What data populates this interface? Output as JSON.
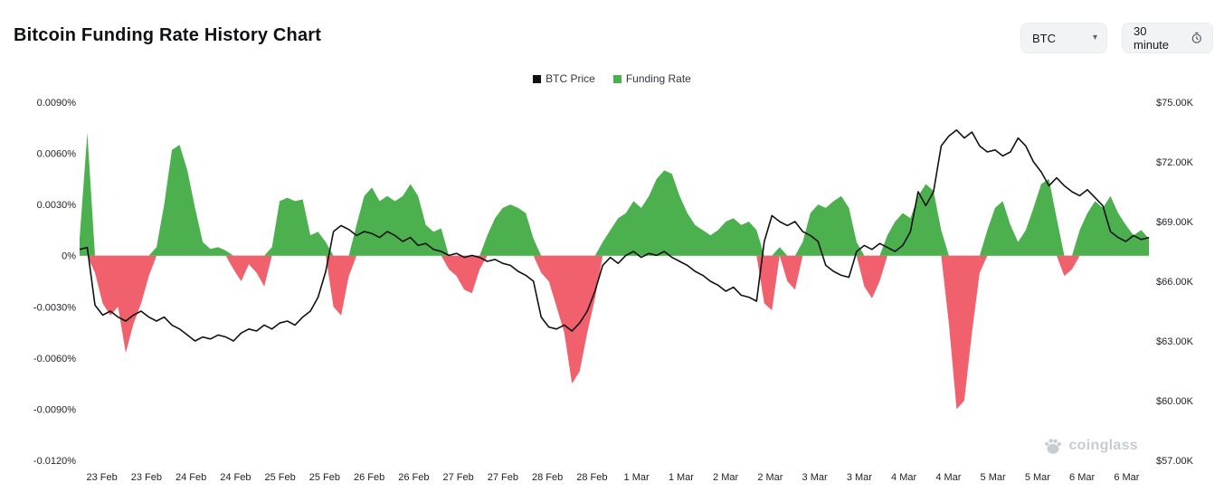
{
  "header": {
    "title": "Bitcoin Funding Rate History Chart",
    "coin_select": {
      "value": "BTC"
    },
    "interval_select": {
      "value": "30 minute"
    }
  },
  "legend": [
    {
      "label": "BTC Price",
      "color": "#111111"
    },
    {
      "label": "Funding Rate",
      "color": "#4cb04f"
    }
  ],
  "watermark": {
    "text": "coinglass"
  },
  "chart_data": {
    "type": "area+line",
    "title": "Bitcoin Funding Rate History Chart",
    "grid": false,
    "legend_position": "top-center",
    "x_labels": [
      "23 Feb",
      "23 Feb",
      "24 Feb",
      "24 Feb",
      "25 Feb",
      "25 Feb",
      "26 Feb",
      "26 Feb",
      "27 Feb",
      "27 Feb",
      "28 Feb",
      "28 Feb",
      "1 Mar",
      "1 Mar",
      "2 Mar",
      "2 Mar",
      "3 Mar",
      "3 Mar",
      "4 Mar",
      "4 Mar",
      "5 Mar",
      "5 Mar",
      "6 Mar",
      "6 Mar"
    ],
    "left_axis": {
      "label": "Funding Rate",
      "unit": "%",
      "min": -0.012,
      "max": 0.009,
      "ticks": [
        {
          "label": "0.0090%",
          "value": 0.009
        },
        {
          "label": "0.0060%",
          "value": 0.006
        },
        {
          "label": "0.0030%",
          "value": 0.003
        },
        {
          "label": "0%",
          "value": 0
        },
        {
          "label": "-0.0030%",
          "value": -0.003
        },
        {
          "label": "-0.0060%",
          "value": -0.006
        },
        {
          "label": "-0.0090%",
          "value": -0.009
        },
        {
          "label": "-0.0120%",
          "value": -0.012
        }
      ]
    },
    "right_axis": {
      "label": "BTC Price",
      "unit": "$K",
      "min": 57,
      "max": 75,
      "ticks": [
        {
          "label": "$75.00K",
          "value": 75
        },
        {
          "label": "$72.00K",
          "value": 72
        },
        {
          "label": "$69.00K",
          "value": 69
        },
        {
          "label": "$66.00K",
          "value": 66
        },
        {
          "label": "$63.00K",
          "value": 63
        },
        {
          "label": "$60.00K",
          "value": 60
        },
        {
          "label": "$57.00K",
          "value": 57
        }
      ]
    },
    "series": [
      {
        "name": "Funding Rate",
        "type": "area",
        "axis": "left",
        "unit": "%",
        "color_positive": "#4cb04f",
        "color_negative": "#f1616d",
        "values": [
          0.001,
          0.0072,
          -0.001,
          -0.0028,
          -0.0035,
          -0.003,
          -0.0057,
          -0.004,
          -0.0028,
          -0.0012,
          0.0005,
          0.003,
          0.0062,
          0.0065,
          0.005,
          0.0028,
          0.0008,
          0.0004,
          0.0005,
          0.0003,
          -0.0008,
          -0.0015,
          -0.0005,
          -0.001,
          -0.0018,
          0.0005,
          0.0032,
          0.0034,
          0.0032,
          0.0033,
          0.0012,
          0.0014,
          0.0008,
          -0.003,
          -0.0035,
          -0.0012,
          0.0018,
          0.0035,
          0.004,
          0.0032,
          0.0035,
          0.0032,
          0.0035,
          0.0042,
          0.0035,
          0.0018,
          0.0014,
          0.0016,
          -0.0008,
          -0.0012,
          -0.002,
          -0.0022,
          -0.0008,
          0.0012,
          0.0022,
          0.0028,
          0.003,
          0.0028,
          0.0025,
          0.001,
          -0.001,
          -0.0015,
          -0.003,
          -0.0045,
          -0.0075,
          -0.0068,
          -0.0045,
          -0.0025,
          0.0008,
          0.0015,
          0.0022,
          0.0025,
          0.0032,
          0.0028,
          0.0035,
          0.0045,
          0.005,
          0.0048,
          0.0035,
          0.0025,
          0.0018,
          0.0015,
          0.0012,
          0.0015,
          0.002,
          0.0022,
          0.0018,
          0.002,
          0.0015,
          -0.0028,
          -0.0032,
          0.0005,
          -0.0015,
          -0.002,
          0.0008,
          0.0025,
          0.003,
          0.0028,
          0.0032,
          0.0035,
          0.0028,
          0.0008,
          -0.0018,
          -0.0025,
          -0.0015,
          0.0012,
          0.002,
          0.0025,
          0.0022,
          0.0035,
          0.0042,
          0.0038,
          0.0015,
          -0.004,
          -0.009,
          -0.0085,
          -0.0045,
          -0.001,
          0.0015,
          0.0028,
          0.0032,
          0.0018,
          0.0008,
          0.0015,
          0.0028,
          0.0042,
          0.0045,
          0.0022,
          -0.0012,
          -0.0008,
          0.0015,
          0.0025,
          0.0032,
          0.0028,
          0.0035,
          0.0025,
          0.0018,
          0.0012,
          0.0015,
          0.001
        ]
      },
      {
        "name": "BTC Price",
        "type": "line",
        "axis": "right",
        "unit": "$K",
        "color": "#111111",
        "values": [
          67.6,
          67.7,
          64.8,
          64.3,
          64.5,
          64.2,
          64.0,
          64.3,
          64.5,
          64.2,
          64.0,
          64.2,
          63.8,
          63.6,
          63.3,
          63.0,
          63.2,
          63.1,
          63.3,
          63.2,
          63.0,
          63.4,
          63.6,
          63.5,
          63.8,
          63.6,
          63.9,
          64.0,
          63.8,
          64.2,
          64.5,
          65.2,
          66.5,
          68.5,
          68.8,
          68.6,
          68.3,
          68.5,
          68.4,
          68.2,
          68.5,
          68.3,
          68.0,
          68.2,
          67.8,
          67.9,
          67.6,
          67.5,
          67.3,
          67.4,
          67.2,
          67.3,
          67.2,
          67.0,
          67.1,
          66.9,
          66.8,
          66.5,
          66.3,
          66.0,
          64.2,
          63.7,
          63.6,
          63.8,
          63.5,
          63.9,
          64.5,
          65.5,
          66.8,
          67.2,
          66.9,
          67.3,
          67.5,
          67.2,
          67.4,
          67.3,
          67.5,
          67.2,
          67.0,
          66.8,
          66.5,
          66.3,
          66.0,
          65.8,
          65.5,
          65.7,
          65.3,
          65.2,
          65.0,
          68.0,
          69.3,
          69.0,
          68.8,
          69.0,
          68.5,
          68.3,
          68.0,
          66.8,
          66.5,
          66.3,
          66.2,
          67.5,
          67.8,
          67.6,
          67.9,
          67.7,
          67.5,
          67.8,
          68.5,
          70.5,
          69.8,
          70.5,
          72.8,
          73.3,
          73.6,
          73.2,
          73.5,
          72.8,
          72.5,
          72.6,
          72.3,
          72.5,
          73.2,
          72.8,
          72.0,
          71.5,
          70.8,
          71.2,
          70.8,
          70.5,
          70.3,
          70.6,
          70.2,
          69.8,
          68.5,
          68.2,
          68.0,
          68.3,
          68.1,
          68.2
        ]
      }
    ]
  }
}
